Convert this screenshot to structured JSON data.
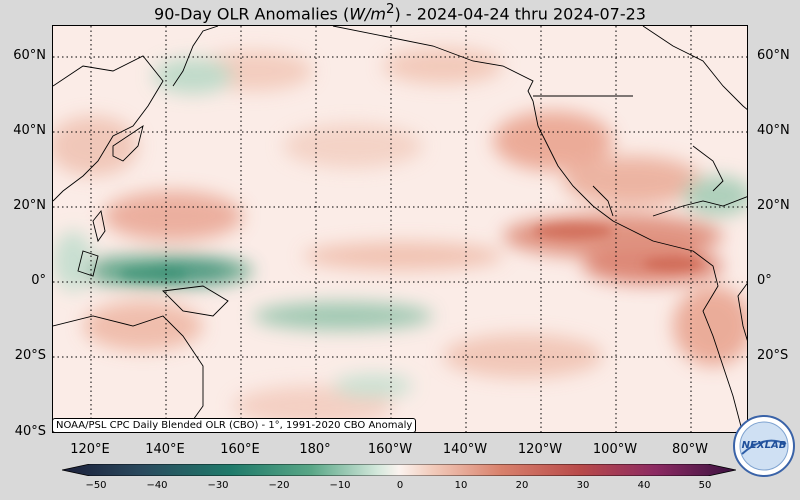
{
  "title": {
    "prefix": "90-Day OLR Anomalies (",
    "unit": "W/m",
    "sup": "2",
    "suffix": ") - 2024-04-24 thru 2024-07-23"
  },
  "lat_labels": [
    "60°N",
    "40°N",
    "20°N",
    "0°",
    "20°S",
    "40°S"
  ],
  "lat_labels_right": [
    "60°N",
    "40°N",
    "20°N",
    "0°",
    "20°S"
  ],
  "lon_labels": [
    "120°E",
    "140°E",
    "160°E",
    "180°",
    "160°W",
    "140°W",
    "120°W",
    "100°W",
    "80°W"
  ],
  "credit": "NOAA/PSL CPC Daily Blended OLR (CBO) - 1°, 1991-2020 CBO Anomaly",
  "colorbar": {
    "ticks": [
      "−50",
      "−40",
      "−30",
      "−20",
      "−10",
      "0",
      "10",
      "20",
      "30",
      "40",
      "50"
    ],
    "min": -50,
    "max": 50
  },
  "logo": {
    "text": "NEXLAB"
  },
  "colors": {
    "negative": "#2e8b6e",
    "positive": "#c8533a",
    "land": "#000000"
  }
}
